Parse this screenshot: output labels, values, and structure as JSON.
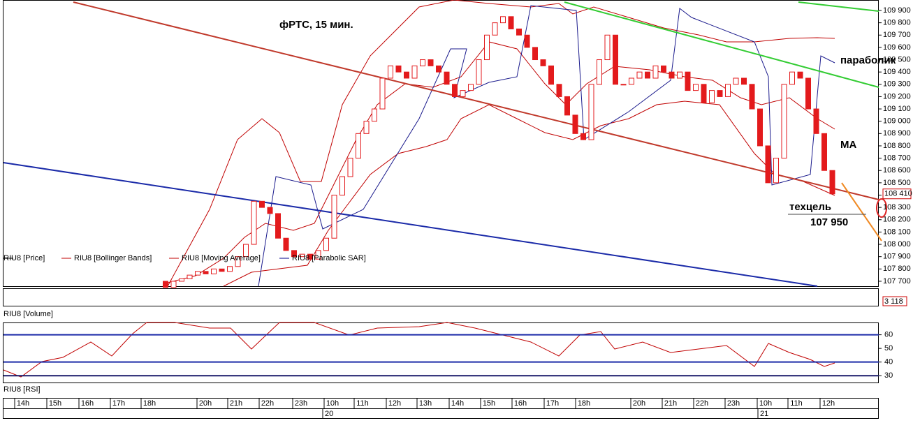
{
  "chart_data": {
    "type": "candlestick",
    "title": "фРТС, 15 мин.",
    "annotations": [
      "параболик",
      "МА",
      "техцель",
      "107 950"
    ],
    "legend": [
      "RIU8 [Price]",
      "RIU8 [Bollinger Bands]",
      "RIU8 [Moving Average]",
      "RIU8 [Parabolic SAR]"
    ],
    "legend_colors": [
      "#000000",
      "#c00000",
      "#c00000",
      "#00008b"
    ],
    "up_color": "#ffffff",
    "down_color": "#e31a1c",
    "open": [
      107700,
      107650,
      107700,
      107720,
      107750,
      107780,
      107760,
      107800,
      107780,
      107820,
      107900,
      108000,
      108350,
      108300,
      108250,
      108050,
      107950,
      107900,
      107920,
      107880,
      107950,
      108050,
      108400,
      108550,
      108700,
      108900,
      109000,
      109100,
      109350,
      109450,
      109400,
      109350,
      109450,
      109500,
      109450,
      109400,
      109300,
      109200,
      109250,
      109300,
      109500,
      109700,
      109800,
      109850,
      109750,
      109700,
      109600,
      109500,
      109450,
      109300,
      109200,
      109050,
      108900,
      108850,
      109300,
      109500,
      109700,
      109300,
      109300,
      109350,
      109400,
      109350,
      109450,
      109400,
      109350,
      109400,
      109250,
      109300,
      109150,
      109250,
      109200,
      109300,
      109350,
      109300,
      109100,
      108800,
      108500,
      108700,
      109300,
      109400,
      109350,
      109100,
      108900,
      108600
    ],
    "close": [
      107650,
      107700,
      107720,
      107750,
      107780,
      107760,
      107800,
      107780,
      107820,
      107900,
      108000,
      108350,
      108300,
      108250,
      108050,
      107950,
      107900,
      107920,
      107880,
      107950,
      108050,
      108400,
      108550,
      108700,
      108900,
      109000,
      109100,
      109350,
      109450,
      109400,
      109350,
      109450,
      109500,
      109450,
      109400,
      109300,
      109200,
      109250,
      109300,
      109500,
      109700,
      109800,
      109850,
      109750,
      109700,
      109600,
      109500,
      109450,
      109300,
      109200,
      109050,
      108900,
      108850,
      109300,
      109500,
      109700,
      109300,
      109300,
      109350,
      109400,
      109350,
      109450,
      109400,
      109350,
      109400,
      109250,
      109300,
      109150,
      109250,
      109200,
      109300,
      109350,
      109300,
      109100,
      108800,
      108500,
      108700,
      109300,
      109400,
      109350,
      109100,
      108900,
      108600,
      108410
    ],
    "ylim": [
      107660,
      109985
    ],
    "yticks": [
      {
        "value": 107700,
        "label": "107 700"
      },
      {
        "value": 107800,
        "label": "107 800"
      },
      {
        "value": 107900,
        "label": "107 900"
      },
      {
        "value": 108000,
        "label": "108 000"
      },
      {
        "value": 108100,
        "label": "108 100"
      },
      {
        "value": 108200,
        "label": "108 200"
      },
      {
        "value": 108300,
        "label": "108 300"
      },
      {
        "value": 108400,
        "label": "108 400"
      },
      {
        "value": 108500,
        "label": "108 500"
      },
      {
        "value": 108600,
        "label": "108 600"
      },
      {
        "value": 108700,
        "label": "108 700"
      },
      {
        "value": 108800,
        "label": "108 800"
      },
      {
        "value": 108900,
        "label": "108 900"
      },
      {
        "value": 109000,
        "label": "109 000"
      },
      {
        "value": 109100,
        "label": "109 100"
      },
      {
        "value": 109200,
        "label": "109 200"
      },
      {
        "value": 109300,
        "label": "109 300"
      },
      {
        "value": 109400,
        "label": "109 400"
      },
      {
        "value": 109500,
        "label": "109 500"
      },
      {
        "value": 109600,
        "label": "109 600"
      },
      {
        "value": 109700,
        "label": "109 700"
      },
      {
        "value": 109800,
        "label": "109 800"
      },
      {
        "value": 109900,
        "label": "109 900"
      }
    ],
    "last_price": {
      "value": 108410,
      "label": "108 410"
    },
    "volume_title": "RIU8 [Volume]",
    "volume_last_label": "3 118",
    "rsi_title": "RIU8 [RSI]",
    "rsi_ylim": [
      25,
      69
    ],
    "rsi_yticks": [
      30,
      40,
      50,
      60
    ],
    "rsi_levels": [
      60,
      40
    ],
    "time_labels": [
      "14h",
      "15h",
      "16h",
      "17h",
      "18h",
      "20h",
      "21h",
      "22h",
      "23h",
      "10h",
      "11h",
      "12h",
      "13h",
      "14h",
      "15h",
      "16h",
      "17h",
      "18h",
      "20h",
      "21h",
      "22h",
      "23h",
      "10h",
      "11h",
      "12h"
    ],
    "date_labels": [
      "20",
      "21"
    ]
  }
}
